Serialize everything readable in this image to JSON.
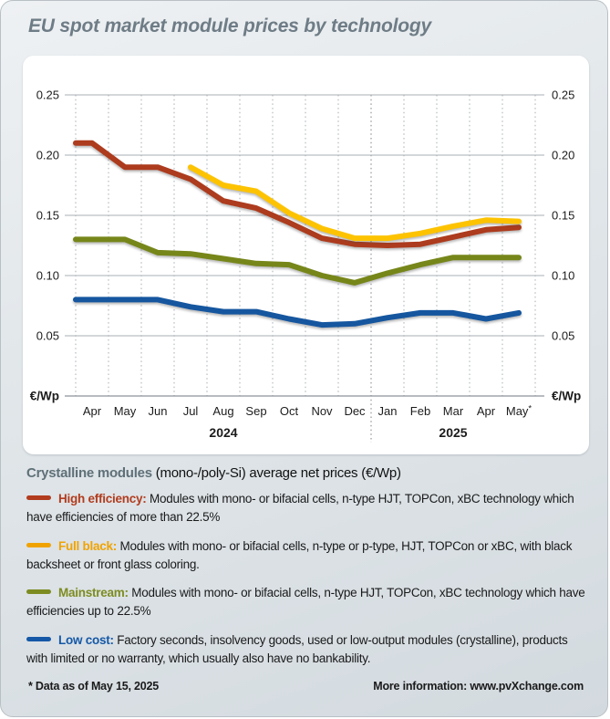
{
  "header": {
    "title": "EU spot market module prices by technology"
  },
  "chart_data": {
    "type": "line",
    "unit_label": "€/Wp",
    "x_categories": [
      "Apr",
      "May",
      "Jun",
      "Jul",
      "Aug",
      "Sep",
      "Oct",
      "Nov",
      "Dec",
      "Jan",
      "Feb",
      "Mar",
      "Apr",
      "May*"
    ],
    "year_groups": [
      {
        "label": "2024",
        "span": [
          0,
          8
        ]
      },
      {
        "label": "2025",
        "span": [
          9,
          13
        ]
      }
    ],
    "y_ticks": [
      0.25,
      0.2,
      0.15,
      0.1,
      0.05
    ],
    "ylim": [
      0,
      0.25
    ],
    "grid": {
      "horizontal": "solid",
      "vertical": "dotted",
      "year_separator_boundary": 9
    },
    "series": [
      {
        "name": "High efficiency",
        "color": "#ad3b1d",
        "values": [
          0.21,
          0.19,
          0.19,
          0.18,
          0.162,
          0.156,
          0.144,
          0.131,
          0.126,
          0.125,
          0.126,
          0.132,
          0.138,
          0.14
        ]
      },
      {
        "name": "Full black",
        "color": "#fdc300",
        "values": [
          null,
          null,
          null,
          0.19,
          0.175,
          0.17,
          0.152,
          0.139,
          0.131,
          0.131,
          0.135,
          0.141,
          0.146,
          0.145
        ]
      },
      {
        "name": "Mainstream",
        "color": "#778619",
        "values": [
          0.13,
          0.13,
          0.119,
          0.118,
          0.114,
          0.11,
          0.109,
          0.1,
          0.094,
          0.102,
          0.109,
          0.115,
          0.115,
          0.115
        ]
      },
      {
        "name": "Low cost",
        "color": "#15569f",
        "values": [
          0.08,
          0.08,
          0.08,
          0.074,
          0.07,
          0.07,
          0.064,
          0.059,
          0.06,
          0.065,
          0.069,
          0.069,
          0.064,
          0.069
        ]
      }
    ]
  },
  "legend": {
    "heading_strong": "Crystalline modules",
    "heading_rest": " (mono-/poly-Si) average net prices (€/Wp)",
    "items": [
      {
        "label": "High efficiency:",
        "color": "#b23c1e",
        "text": " Modules with mono- or bifacial cells, n-type HJT, TOPCon, xBC technology which have efficiencies of more than 22.5%"
      },
      {
        "label": "Full black:",
        "color": "#f0a300",
        "text": " Modules with mono- or bifacial cells, n-type or p-type, HJT, TOPCon or xBC, with black backsheet or front glass coloring."
      },
      {
        "label": "Mainstream:",
        "color": "#7d8c21",
        "text": " Modules with mono- or bifacial cells, n-type HJT, TOPCon, xBC technology which have efficiencies up to 22.5%"
      },
      {
        "label": "Low cost:",
        "color": "#1558a7",
        "text": " Factory seconds, insolvency goods, used or low-output modules (crystalline), products with limited or no warranty, which usually also have no bankability."
      }
    ]
  },
  "footer": {
    "note": "* Data as of May 15, 2025",
    "more_info": "More information: www.pvXchange.com"
  }
}
